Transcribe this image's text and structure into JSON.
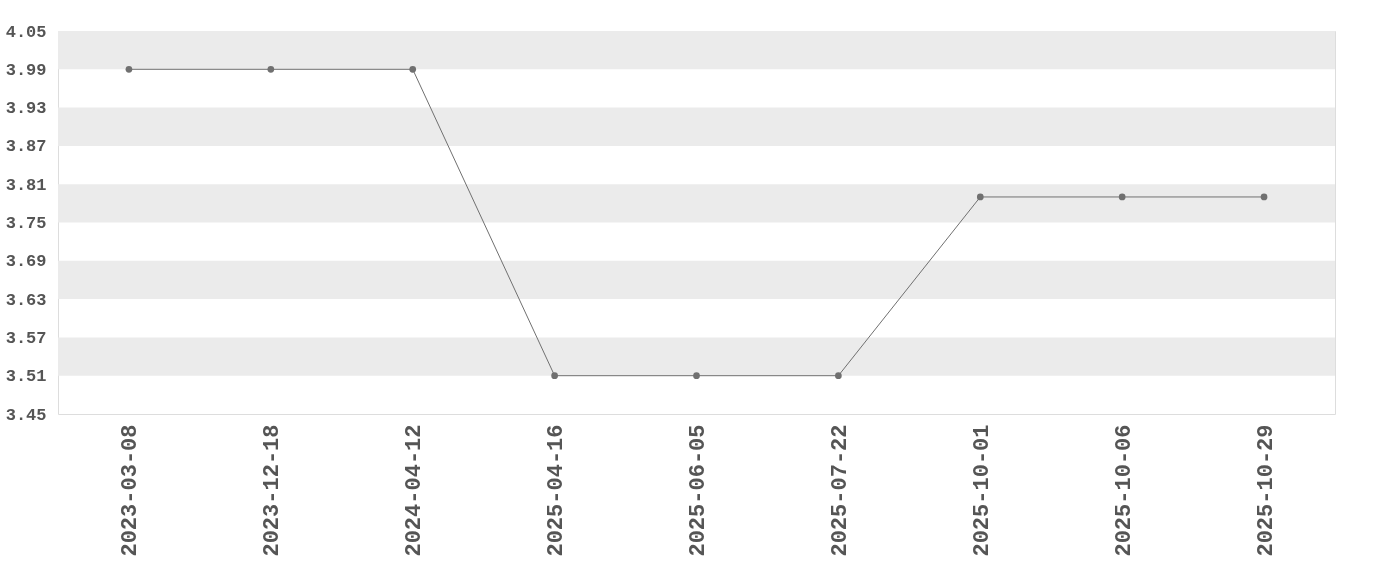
{
  "chart_data": {
    "type": "line",
    "categories": [
      "2023-03-08",
      "2023-12-18",
      "2024-04-12",
      "2025-04-16",
      "2025-06-05",
      "2025-07-22",
      "2025-10-01",
      "2025-10-06",
      "2025-10-29"
    ],
    "series": [
      {
        "color": "#707070",
        "values": [
          3.99,
          3.99,
          3.99,
          3.51,
          3.51,
          3.51,
          3.79,
          3.79,
          3.79
        ]
      }
    ],
    "ylim": [
      3.45,
      4.05
    ],
    "yticks": [
      3.45,
      3.51,
      3.57,
      3.63,
      3.69,
      3.75,
      3.81,
      3.87,
      3.93,
      3.99,
      4.05
    ],
    "bands": [
      {
        "axis": "y",
        "from": 3.99,
        "to": 4.05,
        "color": "#ebebeb"
      },
      {
        "axis": "y",
        "from": 3.87,
        "to": 3.93,
        "color": "#ebebeb"
      },
      {
        "axis": "y",
        "from": 3.75,
        "to": 3.81,
        "color": "#ebebeb"
      },
      {
        "axis": "y",
        "from": 3.63,
        "to": 3.69,
        "color": "#ebebeb"
      },
      {
        "axis": "y",
        "from": 3.51,
        "to": 3.57,
        "color": "#ebebeb"
      }
    ],
    "marker": "circle",
    "line_style": "solid"
  }
}
